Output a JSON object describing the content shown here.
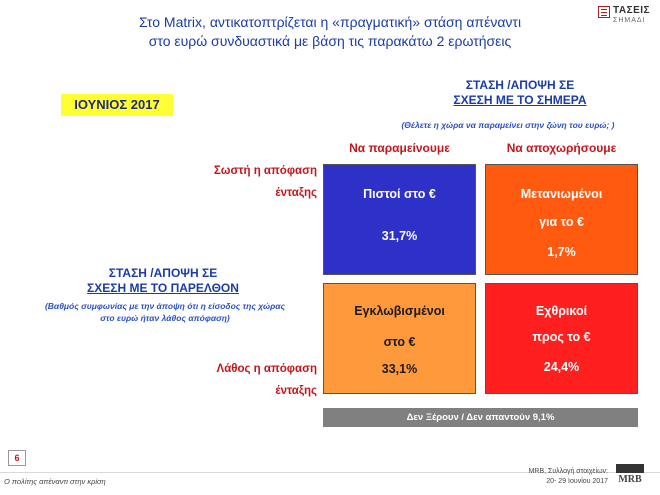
{
  "header": {
    "title_line1": "Στο Matrix, αντικατοπτρίζεται η «πραγματική» στάση απέναντι",
    "title_line2": "στο ευρώ συνδυαστικά με βάση τις παρακάτω 2 ερωτήσεις"
  },
  "logo": {
    "name": "ΤΑΣΕΙΣ",
    "sub": "ΣΗΜΑΔΙ"
  },
  "period": "ΙΟΥΝΙΟΣ 2017",
  "chart_data": {
    "type": "table",
    "axis_now": {
      "title_line1": "ΣΤΑΣΗ /ΑΠΟΨΗ ΣΕ",
      "title_line2": "ΣΧΕΣΗ ΜΕ ΤΟ ΣΗΜΕΡΑ",
      "question": "(Θέλετε η χώρα να παραμείνει στην ζώνη του ευρώ; )",
      "columns": [
        "Να παραμείνουμε",
        "Να αποχωρήσουμε"
      ]
    },
    "axis_past": {
      "title_line1": "ΣΤΑΣΗ /ΑΠΟΨΗ ΣΕ",
      "title_line2": "ΣΧΕΣΗ ΜΕ ΤΟ ΠΑΡΕΛΘΟΝ",
      "question_line1": "(Βαθμός συμφωνίας με την άποψη ότι η είσοδος της χώρας",
      "question_line2": "στο ευρώ ήταν λάθος απόφαση)",
      "rows": [
        {
          "line1": "Σωστή η απόφαση",
          "line2": "ένταξης"
        },
        {
          "line1": "Λάθος η απόφαση",
          "line2": "ένταξης"
        }
      ]
    },
    "cells": [
      {
        "row": 0,
        "col": 0,
        "line1": "Πιστοί στο €",
        "line2": "",
        "label": "31,7%",
        "value": 31.7,
        "color": "#2e31c8"
      },
      {
        "row": 0,
        "col": 1,
        "line1": "Μετανιωμένοι",
        "line2": "για το €",
        "label": "1,7%",
        "value": 1.7,
        "color": "#ff5a10"
      },
      {
        "row": 1,
        "col": 0,
        "line1": "Εγκλωβισμένοι",
        "line2": "στο €",
        "label": "33,1%",
        "value": 33.1,
        "color": "#ff9a3c"
      },
      {
        "row": 1,
        "col": 1,
        "line1": "Εχθρικοί",
        "line2": "προς το €",
        "label": "24,4%",
        "value": 24.4,
        "color": "#ff1f1f"
      }
    ],
    "dont_know": {
      "label": "Δεν Ξέρουν / Δεν απαντούν 9,1%",
      "value": 9.1
    }
  },
  "footer": {
    "page_number": "6",
    "left_text": "Ο πολίτης απέναντι στην κρίση",
    "right_line1": "MRB, Συλλογή στοιχείων:",
    "right_line2": "20- 29 Ιουνίου 2017",
    "mrb_logo": "MRB"
  }
}
